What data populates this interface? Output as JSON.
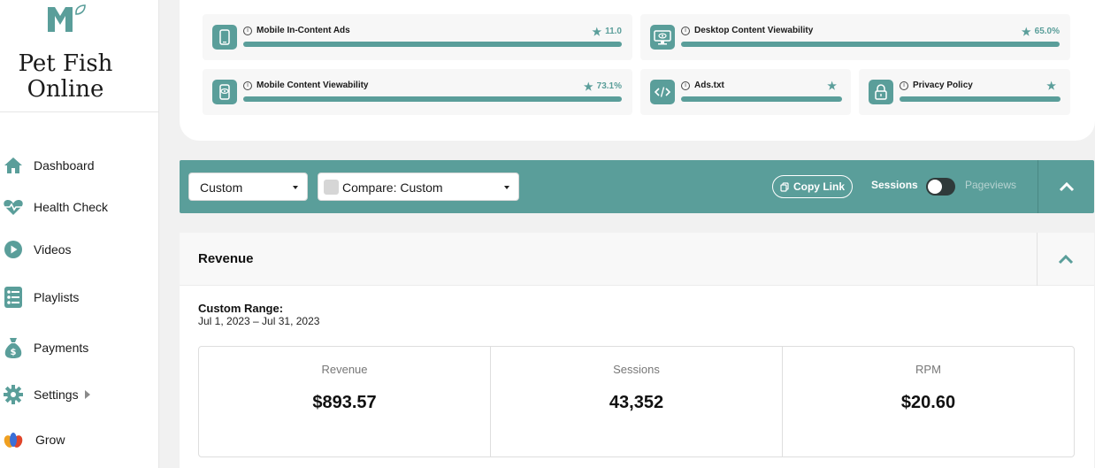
{
  "brand": {
    "name_line1": "Pet Fish",
    "name_line2": "Online"
  },
  "sidebar": {
    "items": [
      {
        "label": "Dashboard",
        "icon": "home-icon"
      },
      {
        "label": "Health Check",
        "icon": "heartbeat-icon"
      },
      {
        "label": "Videos",
        "icon": "play-circle-icon"
      },
      {
        "label": "Playlists",
        "icon": "checklist-icon"
      },
      {
        "label": "Payments",
        "icon": "money-bag-icon"
      },
      {
        "label": "Settings",
        "icon": "gear-icon"
      },
      {
        "label": "Grow",
        "icon": "grow-icon"
      }
    ]
  },
  "metrics": [
    {
      "title": "Mobile In-Content Ads",
      "score": "11.0",
      "icon": "mobile-icon"
    },
    {
      "title": "Desktop Content Viewability",
      "score": "65.0%",
      "icon": "desktop-eye-icon"
    },
    {
      "title": "Mobile Content Viewability",
      "score": "73.1%",
      "icon": "mobile-eye-icon"
    },
    {
      "title": "Ads.txt",
      "score": "",
      "icon": "code-icon"
    },
    {
      "title": "Privacy Policy",
      "score": "",
      "icon": "lock-icon"
    }
  ],
  "filters": {
    "range_select": "Custom",
    "compare_select": "Compare: Custom",
    "copy_link": "Copy Link",
    "toggle_left": "Sessions",
    "toggle_right": "Pageviews"
  },
  "revenue": {
    "title": "Revenue",
    "range_label": "Custom Range:",
    "range_value": "Jul 1, 2023 – Jul 31, 2023",
    "stats": [
      {
        "label": "Revenue",
        "value": "$893.57"
      },
      {
        "label": "Sessions",
        "value": "43,352"
      },
      {
        "label": "RPM",
        "value": "$20.60"
      }
    ]
  },
  "colors": {
    "accent": "#5a9e9a",
    "toggle_dark": "#2f3a3a"
  }
}
